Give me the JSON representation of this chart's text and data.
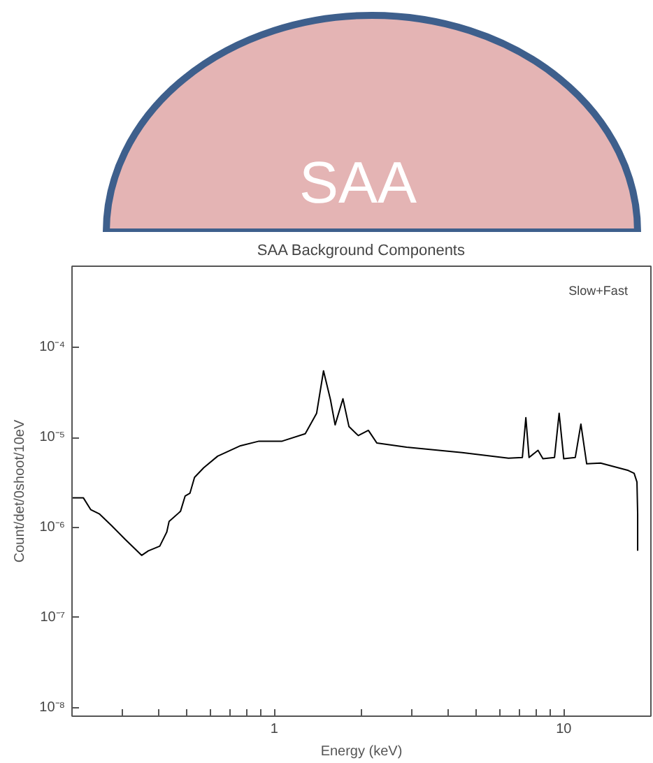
{
  "chart_data": {
    "type": "line",
    "title": "SAA Background Components",
    "xlabel": "Energy (keV)",
    "ylabel": "Count/det/0shoot/10eV",
    "annotations": [
      "SAA",
      "Slow+Fast"
    ],
    "log": "xy",
    "xlim": [
      0.2,
      20
    ],
    "ylim": [
      8e-09,
      0.0008
    ],
    "xticks": [
      {
        "value": 0.2,
        "label": null
      },
      {
        "value": 0.3,
        "label": null
      },
      {
        "value": 0.4,
        "label": null
      },
      {
        "value": 0.5,
        "label": null
      },
      {
        "value": 0.6,
        "label": null
      },
      {
        "value": 0.7,
        "label": null
      },
      {
        "value": 0.8,
        "label": null
      },
      {
        "value": 0.9,
        "label": null
      },
      1,
      {
        "value": 2,
        "label": null
      },
      {
        "value": 3,
        "label": null
      },
      {
        "value": 4,
        "label": null
      },
      {
        "value": 5,
        "label": null
      },
      {
        "value": 6,
        "label": null
      },
      {
        "value": 7,
        "label": null
      },
      {
        "value": 8,
        "label": null
      },
      {
        "value": 9,
        "label": null
      },
      10
    ],
    "yticks": [
      {
        "value": 1e-08,
        "label": "10⁻⁸"
      },
      {
        "value": 1e-07,
        "label": "10⁻⁷"
      },
      {
        "value": 1e-06,
        "label": "10⁻⁶"
      },
      {
        "value": 1e-05,
        "label": "10⁻⁵"
      },
      {
        "value": 0.0001,
        "label": "10⁻⁴"
      }
    ],
    "series": [
      {
        "color": "#000000",
        "x": [
          0.2,
          0.219,
          0.232,
          0.249,
          0.274,
          0.305,
          0.348,
          0.367,
          0.402,
          0.425,
          0.433,
          0.474,
          0.492,
          0.511,
          0.53,
          0.57,
          0.637,
          0.764,
          0.885,
          1.064,
          1.279,
          1.4,
          1.479,
          1.563,
          1.622,
          1.726,
          1.811,
          1.95,
          2.113,
          2.259,
          2.864,
          4.457,
          6.442,
          7.194,
          7.396,
          7.586,
          8.147,
          8.472,
          9.29,
          9.638,
          10.0,
          10.96,
          11.46,
          12.0,
          13.4,
          16.7,
          17.5,
          17.9,
          18.0,
          18.0
        ],
        "values": [
          2.13e-06,
          2.13e-06,
          1.58e-06,
          1.41e-06,
          1.05e-06,
          7.4e-07,
          4.9e-07,
          5.5e-07,
          6.2e-07,
          8.9e-07,
          1.17e-06,
          1.51e-06,
          2.24e-06,
          2.4e-06,
          3.6e-06,
          4.6e-06,
          6.2e-06,
          8.1e-06,
          9.1e-06,
          9.1e-06,
          1.1e-05,
          1.86e-05,
          5.5e-05,
          2.63e-05,
          1.38e-05,
          2.69e-05,
          1.32e-05,
          1.05e-05,
          1.2e-05,
          8.7e-06,
          7.8e-06,
          6.8e-06,
          5.9e-06,
          6e-06,
          1.66e-05,
          6e-06,
          7.2e-06,
          5.8e-06,
          6e-06,
          1.86e-05,
          5.8e-06,
          6e-06,
          1.41e-05,
          5.1e-06,
          5.2e-06,
          4.3e-06,
          4e-06,
          3.2e-06,
          1.41e-06,
          5.5e-07
        ]
      }
    ]
  }
}
